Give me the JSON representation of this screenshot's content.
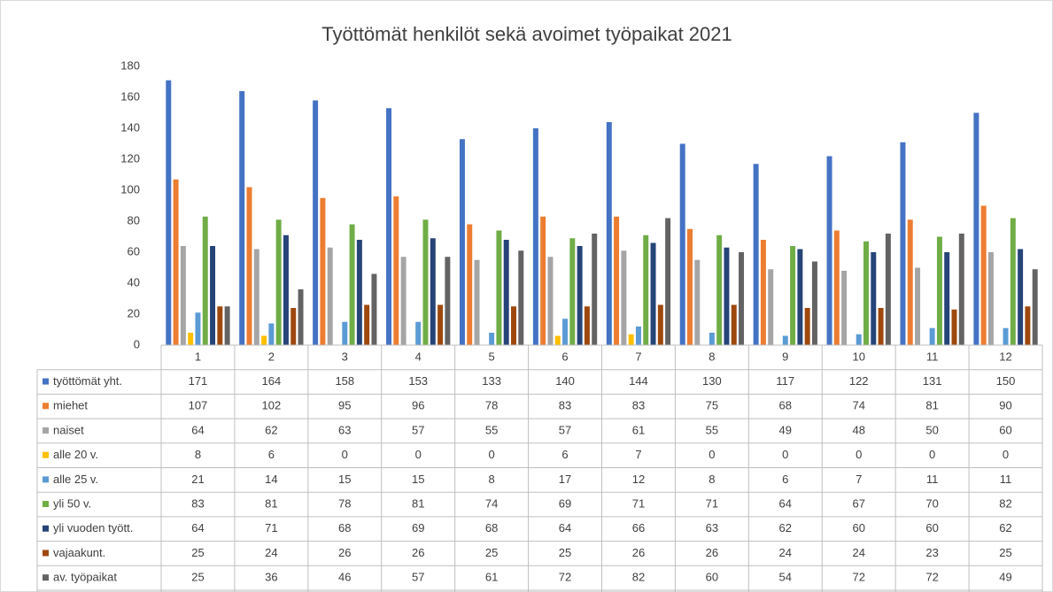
{
  "chart_data": {
    "type": "bar",
    "title": "Työttömät henkilöt sekä avoimet työpaikat 2021",
    "categories": [
      "1",
      "2",
      "3",
      "4",
      "5",
      "6",
      "7",
      "8",
      "9",
      "10",
      "11",
      "12"
    ],
    "series": [
      {
        "name": "työttömät yht.",
        "color": "#4472c4",
        "values": [
          171,
          164,
          158,
          153,
          133,
          140,
          144,
          130,
          117,
          122,
          131,
          150
        ]
      },
      {
        "name": "miehet",
        "color": "#ed7d31",
        "values": [
          107,
          102,
          95,
          96,
          78,
          83,
          83,
          75,
          68,
          74,
          81,
          90
        ]
      },
      {
        "name": "naiset",
        "color": "#a5a5a5",
        "values": [
          64,
          62,
          63,
          57,
          55,
          57,
          61,
          55,
          49,
          48,
          50,
          60
        ]
      },
      {
        "name": "alle 20 v.",
        "color": "#ffc000",
        "values": [
          8,
          6,
          0,
          0,
          0,
          6,
          7,
          0,
          0,
          0,
          0,
          0
        ]
      },
      {
        "name": "alle 25 v.",
        "color": "#5b9bd5",
        "values": [
          21,
          14,
          15,
          15,
          8,
          17,
          12,
          8,
          6,
          7,
          11,
          11
        ]
      },
      {
        "name": "yli 50 v.",
        "color": "#70ad47",
        "values": [
          83,
          81,
          78,
          81,
          74,
          69,
          71,
          71,
          64,
          67,
          70,
          82
        ]
      },
      {
        "name": "yli vuoden tyött.",
        "color": "#264478",
        "values": [
          64,
          71,
          68,
          69,
          68,
          64,
          66,
          63,
          62,
          60,
          60,
          62
        ]
      },
      {
        "name": "vajaakunt.",
        "color": "#9e480e",
        "values": [
          25,
          24,
          26,
          26,
          25,
          25,
          26,
          26,
          24,
          24,
          23,
          25
        ]
      },
      {
        "name": "av. työpaikat",
        "color": "#636363",
        "values": [
          25,
          36,
          46,
          57,
          61,
          72,
          82,
          60,
          54,
          72,
          72,
          49
        ]
      }
    ],
    "ylim": [
      0,
      180
    ],
    "yticks": [
      0,
      20,
      40,
      60,
      80,
      100,
      120,
      140,
      160,
      180
    ],
    "grid": false
  }
}
